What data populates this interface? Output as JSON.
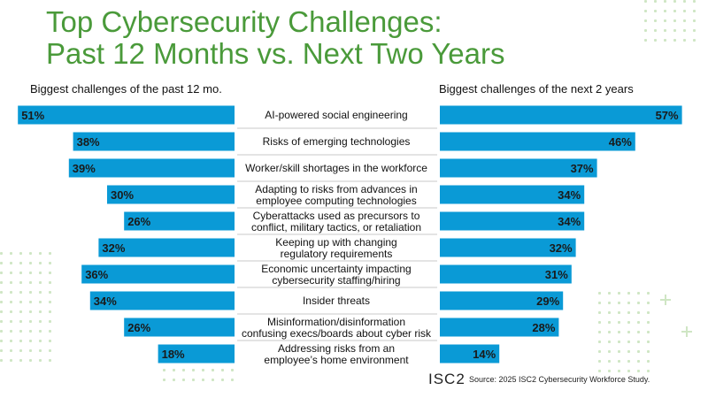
{
  "title_line1": "Top Cybersecurity Challenges:",
  "title_line2": "Past 12 Months vs. Next Two Years",
  "left_header": "Biggest challenges of the past 12 mo.",
  "right_header": "Biggest challenges of the next 2 years",
  "logo": "ISC2",
  "source": "Source: 2025 ISC2 Cybersecurity Workforce Study.",
  "colors": {
    "bar": "#0a9ad6",
    "title": "#4a9a3a",
    "decoration": "#cfe6c4"
  },
  "chart_data": {
    "type": "bar",
    "orientation": "horizontal",
    "unit": "%",
    "categories": [
      [
        "AI-powered social engineering"
      ],
      [
        "Risks of emerging technologies"
      ],
      [
        "Worker/skill shortages in the workforce"
      ],
      [
        "Adapting to risks from advances in",
        "employee computing technologies"
      ],
      [
        "Cyberattacks used as precursors to",
        "conflict, military tactics, or retaliation"
      ],
      [
        "Keeping up with changing",
        "regulatory requirements"
      ],
      [
        "Economic uncertainty impacting",
        "cybersecurity staffing/hiring"
      ],
      [
        "Insider threats"
      ],
      [
        "Misinformation/disinformation",
        "confusing execs/boards about cyber risk"
      ],
      [
        "Addressing risks from an",
        "employee’s home environment"
      ]
    ],
    "series": [
      {
        "name": "Biggest challenges of the past 12 mo.",
        "values": [
          51,
          38,
          39,
          30,
          26,
          32,
          36,
          34,
          26,
          18
        ],
        "labels": [
          "51%",
          "38%",
          "39%",
          "30%",
          "26%",
          "32%",
          "36%",
          "34%",
          "26%",
          "18%"
        ]
      },
      {
        "name": "Biggest challenges of the next 2 years",
        "values": [
          57,
          46,
          37,
          34,
          34,
          32,
          31,
          29,
          28,
          14
        ],
        "labels": [
          "57%",
          "46%",
          "37%",
          "34%",
          "34%",
          "32%",
          "31%",
          "29%",
          "28%",
          "14%"
        ]
      }
    ]
  }
}
